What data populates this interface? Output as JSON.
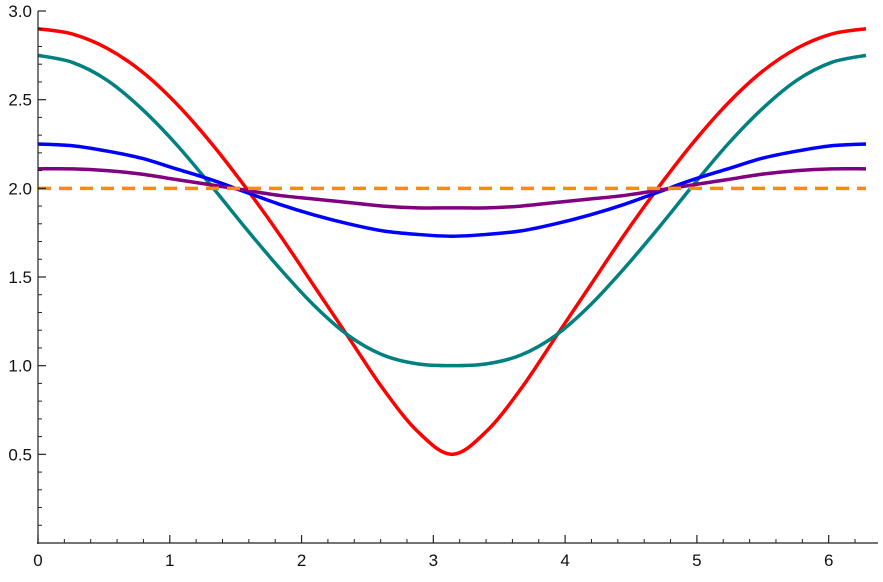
{
  "chart_data": {
    "type": "line",
    "title": "",
    "xlabel": "",
    "ylabel": "",
    "xlim": [
      0,
      6.2832
    ],
    "ylim": [
      0,
      3.0
    ],
    "grid": false,
    "legend": "none",
    "x_ticks": [
      0,
      1,
      2,
      3,
      4,
      5,
      6
    ],
    "x_tick_labels": [
      "0",
      "1",
      "2",
      "3",
      "4",
      "5",
      "6"
    ],
    "y_ticks": [
      0.5,
      1.0,
      1.5,
      2.0,
      2.5,
      3.0
    ],
    "y_tick_labels": [
      "0.5",
      "1.0",
      "1.5",
      "2.0",
      "2.5",
      "3.0"
    ],
    "x": [
      0.0,
      0.2618,
      0.5236,
      0.7854,
      1.0472,
      1.309,
      1.5708,
      1.8326,
      2.0944,
      2.3562,
      2.618,
      2.8798,
      3.1416,
      3.4034,
      3.6652,
      3.927,
      4.1888,
      4.4506,
      4.7124,
      4.9742,
      5.236,
      5.4978,
      5.7596,
      6.0214,
      6.2832
    ],
    "series": [
      {
        "color": "#ff0000",
        "style": "solid",
        "values": [
          2.9,
          2.87,
          2.79,
          2.66,
          2.48,
          2.26,
          2.01,
          1.74,
          1.45,
          1.16,
          0.87,
          0.63,
          0.5,
          0.63,
          0.87,
          1.16,
          1.45,
          1.74,
          2.01,
          2.26,
          2.48,
          2.66,
          2.79,
          2.87,
          2.9
        ]
      },
      {
        "color": "#008080",
        "style": "solid",
        "values": [
          2.75,
          2.71,
          2.61,
          2.45,
          2.25,
          2.02,
          1.78,
          1.55,
          1.34,
          1.17,
          1.06,
          1.01,
          1.0,
          1.01,
          1.06,
          1.17,
          1.34,
          1.55,
          1.78,
          2.02,
          2.25,
          2.45,
          2.61,
          2.71,
          2.75
        ]
      },
      {
        "color": "#0000ff",
        "style": "solid",
        "values": [
          2.25,
          2.24,
          2.21,
          2.17,
          2.11,
          2.05,
          1.98,
          1.91,
          1.85,
          1.8,
          1.76,
          1.74,
          1.73,
          1.74,
          1.76,
          1.8,
          1.85,
          1.91,
          1.98,
          2.05,
          2.11,
          2.17,
          2.21,
          2.24,
          2.25
        ]
      },
      {
        "color": "#800080",
        "style": "solid",
        "values": [
          2.11,
          2.11,
          2.1,
          2.08,
          2.05,
          2.02,
          1.99,
          1.96,
          1.94,
          1.92,
          1.9,
          1.89,
          1.89,
          1.89,
          1.9,
          1.92,
          1.94,
          1.96,
          1.99,
          2.02,
          2.05,
          2.08,
          2.1,
          2.11,
          2.11
        ]
      },
      {
        "color": "#ff8c00",
        "style": "dashed",
        "values": [
          2.0,
          2.0,
          2.0,
          2.0,
          2.0,
          2.0,
          2.0,
          2.0,
          2.0,
          2.0,
          2.0,
          2.0,
          2.0,
          2.0,
          2.0,
          2.0,
          2.0,
          2.0,
          2.0,
          2.0,
          2.0,
          2.0,
          2.0,
          2.0,
          2.0
        ]
      }
    ]
  }
}
